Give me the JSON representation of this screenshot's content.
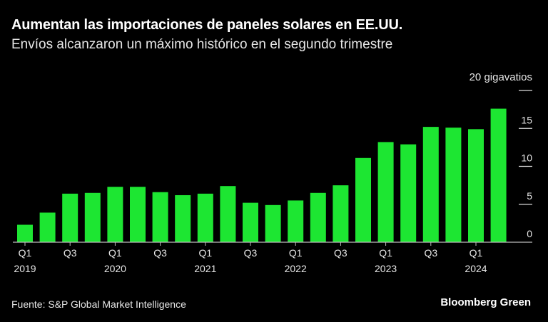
{
  "chart_data": {
    "type": "bar",
    "title": "Aumentan las importaciones de paneles solares en EE.UU.",
    "subtitle": "Envíos alcanzaron un máximo histórico en el segundo trimestre",
    "unit_label": "20 gigavatios",
    "categories": [
      "Q1 2019",
      "Q2 2019",
      "Q3 2019",
      "Q4 2019",
      "Q1 2020",
      "Q2 2020",
      "Q3 2020",
      "Q4 2020",
      "Q1 2021",
      "Q2 2021",
      "Q3 2021",
      "Q4 2021",
      "Q1 2022",
      "Q2 2022",
      "Q3 2022",
      "Q4 2022",
      "Q1 2023",
      "Q2 2023",
      "Q3 2023",
      "Q4 2023",
      "Q1 2024",
      "Q2 2024"
    ],
    "values": [
      2.3,
      3.9,
      6.4,
      6.5,
      7.3,
      7.3,
      6.6,
      6.2,
      6.4,
      7.4,
      5.2,
      4.9,
      5.5,
      6.5,
      7.5,
      11.1,
      13.2,
      12.9,
      15.2,
      15.1,
      14.9,
      17.6
    ],
    "ylim": [
      0,
      20
    ],
    "yticks": [
      0,
      5,
      10,
      15
    ],
    "xtick_labels": [
      {
        "index": 0,
        "q": "Q1",
        "year": "2019"
      },
      {
        "index": 2,
        "q": "Q3",
        "year": ""
      },
      {
        "index": 4,
        "q": "Q1",
        "year": "2020"
      },
      {
        "index": 6,
        "q": "Q3",
        "year": ""
      },
      {
        "index": 8,
        "q": "Q1",
        "year": "2021"
      },
      {
        "index": 10,
        "q": "Q3",
        "year": ""
      },
      {
        "index": 12,
        "q": "Q1",
        "year": "2022"
      },
      {
        "index": 14,
        "q": "Q3",
        "year": ""
      },
      {
        "index": 16,
        "q": "Q1",
        "year": "2023"
      },
      {
        "index": 18,
        "q": "Q3",
        "year": ""
      },
      {
        "index": 20,
        "q": "Q1",
        "year": "2024"
      }
    ],
    "bar_color": "#1de632",
    "background": "#000000",
    "grid": false
  },
  "footer": {
    "source": "Fuente: S&P Global Market Intelligence",
    "brand": "Bloomberg Green"
  }
}
